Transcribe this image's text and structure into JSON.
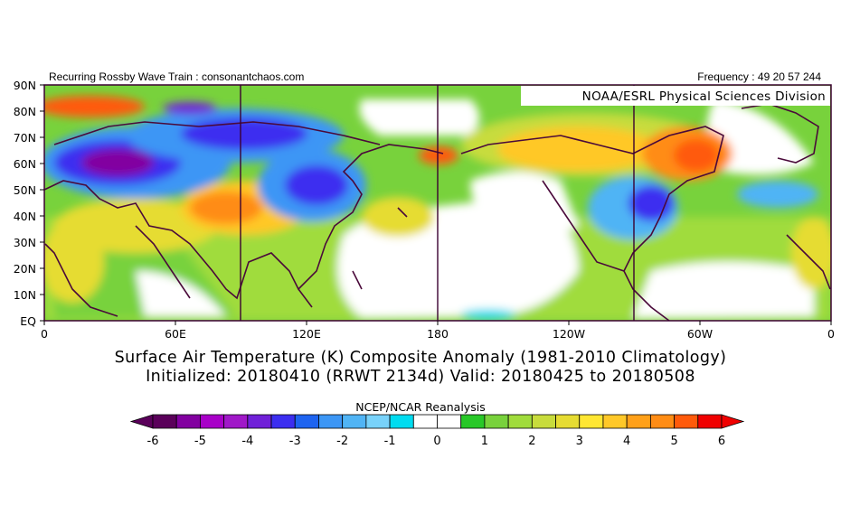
{
  "header": {
    "left": "Recurring Rossby Wave Train : consonantchaos.com",
    "right": "Frequency : 49 20 57 244"
  },
  "map": {
    "credit": "NOAA/ESRL Physical Sciences Division",
    "lat_labels": [
      "90N",
      "80N",
      "70N",
      "60N",
      "50N",
      "40N",
      "30N",
      "20N",
      "10N",
      "EQ"
    ],
    "lon_labels": [
      "0",
      "60E",
      "120E",
      "180",
      "120W",
      "60W",
      "0"
    ],
    "colors": {
      "coast": "#4a0a3a",
      "frame": "#3a0030",
      "neutral": "#ffffff"
    }
  },
  "title": {
    "line1": "Surface Air Temperature (K) Composite Anomaly (1981-2010 Climatology)",
    "line2": "Initialized: 20180410 (RRWT 2134d) Valid: 20180425 to 20180508"
  },
  "colorbar": {
    "label": "NCEP/NCAR Reanalysis",
    "ticks": [
      "-6",
      "-5",
      "-4",
      "-3",
      "-2",
      "-1",
      "0",
      "1",
      "2",
      "3",
      "4",
      "5",
      "6"
    ],
    "colors": [
      "#5a005a",
      "#8200a0",
      "#a800c8",
      "#a018c8",
      "#7020d8",
      "#3c2ef0",
      "#1e64f0",
      "#3c96f5",
      "#50b4f5",
      "#78d2fa",
      "#00dcf0",
      "#ffffff",
      "#ffffff",
      "#28c828",
      "#78d23c",
      "#a0dc3c",
      "#c8dc3c",
      "#e6dc32",
      "#ffe632",
      "#ffc828",
      "#ffa019",
      "#ff8c14",
      "#ff5a0a",
      "#f00000"
    ]
  }
}
